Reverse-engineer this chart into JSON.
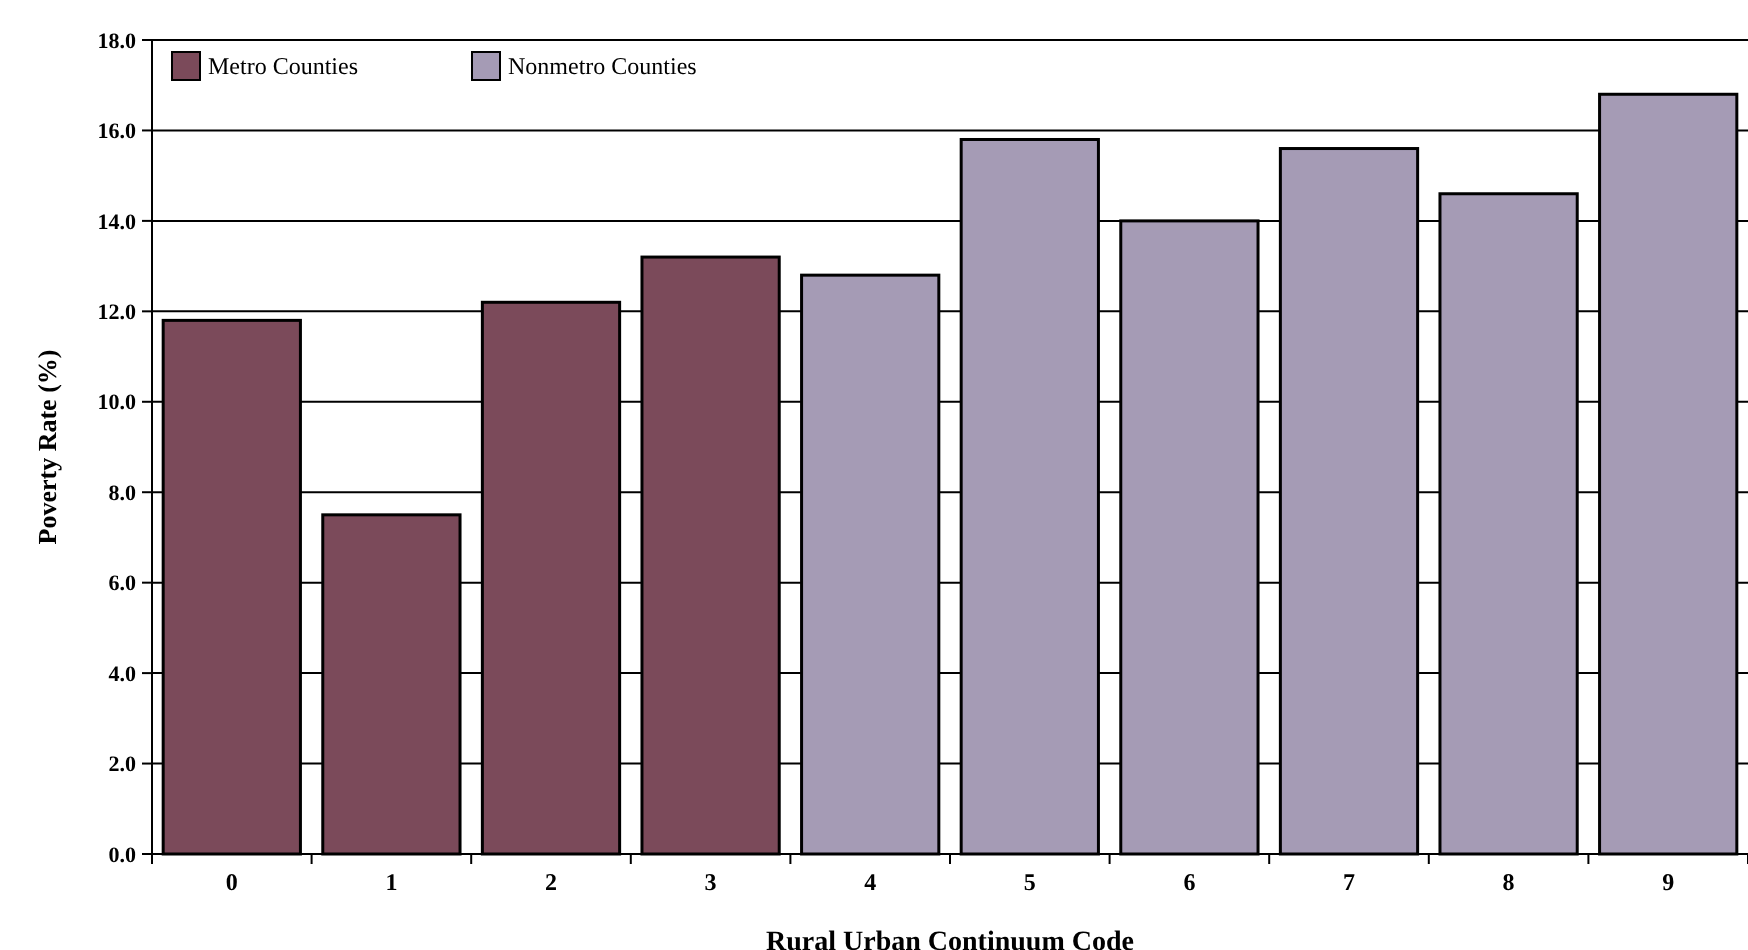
{
  "chart_data": {
    "type": "bar",
    "stacked": true,
    "xlabel": "Rural Urban Continuum Code",
    "ylabel": "Poverty Rate (%)",
    "categories": [
      "0",
      "1",
      "2",
      "3",
      "4",
      "5",
      "6",
      "7",
      "8",
      "9"
    ],
    "series": [
      {
        "name": "Metro Counties",
        "color": "#7b4a5a",
        "values": [
          11.8,
          7.5,
          12.2,
          13.2,
          null,
          null,
          null,
          null,
          null,
          null
        ]
      },
      {
        "name": "Nonmetro Counties",
        "color": "#a59bb5",
        "values": [
          null,
          null,
          null,
          null,
          12.8,
          15.8,
          14.0,
          15.6,
          14.6,
          16.8
        ]
      }
    ],
    "ylim": [
      0,
      18
    ],
    "yticks": [
      {
        "value": 0,
        "label": "0.0"
      },
      {
        "value": 2,
        "label": "2.0"
      },
      {
        "value": 4,
        "label": "4.0"
      },
      {
        "value": 6,
        "label": "6.0"
      },
      {
        "value": 8,
        "label": "8.0"
      },
      {
        "value": 10,
        "label": "10.0"
      },
      {
        "value": 12,
        "label": "12.0"
      },
      {
        "value": 14,
        "label": "14.0"
      },
      {
        "value": 16,
        "label": "16.0"
      },
      {
        "value": 18,
        "label": "18.0"
      }
    ],
    "grid": "y",
    "legend": "top left"
  }
}
